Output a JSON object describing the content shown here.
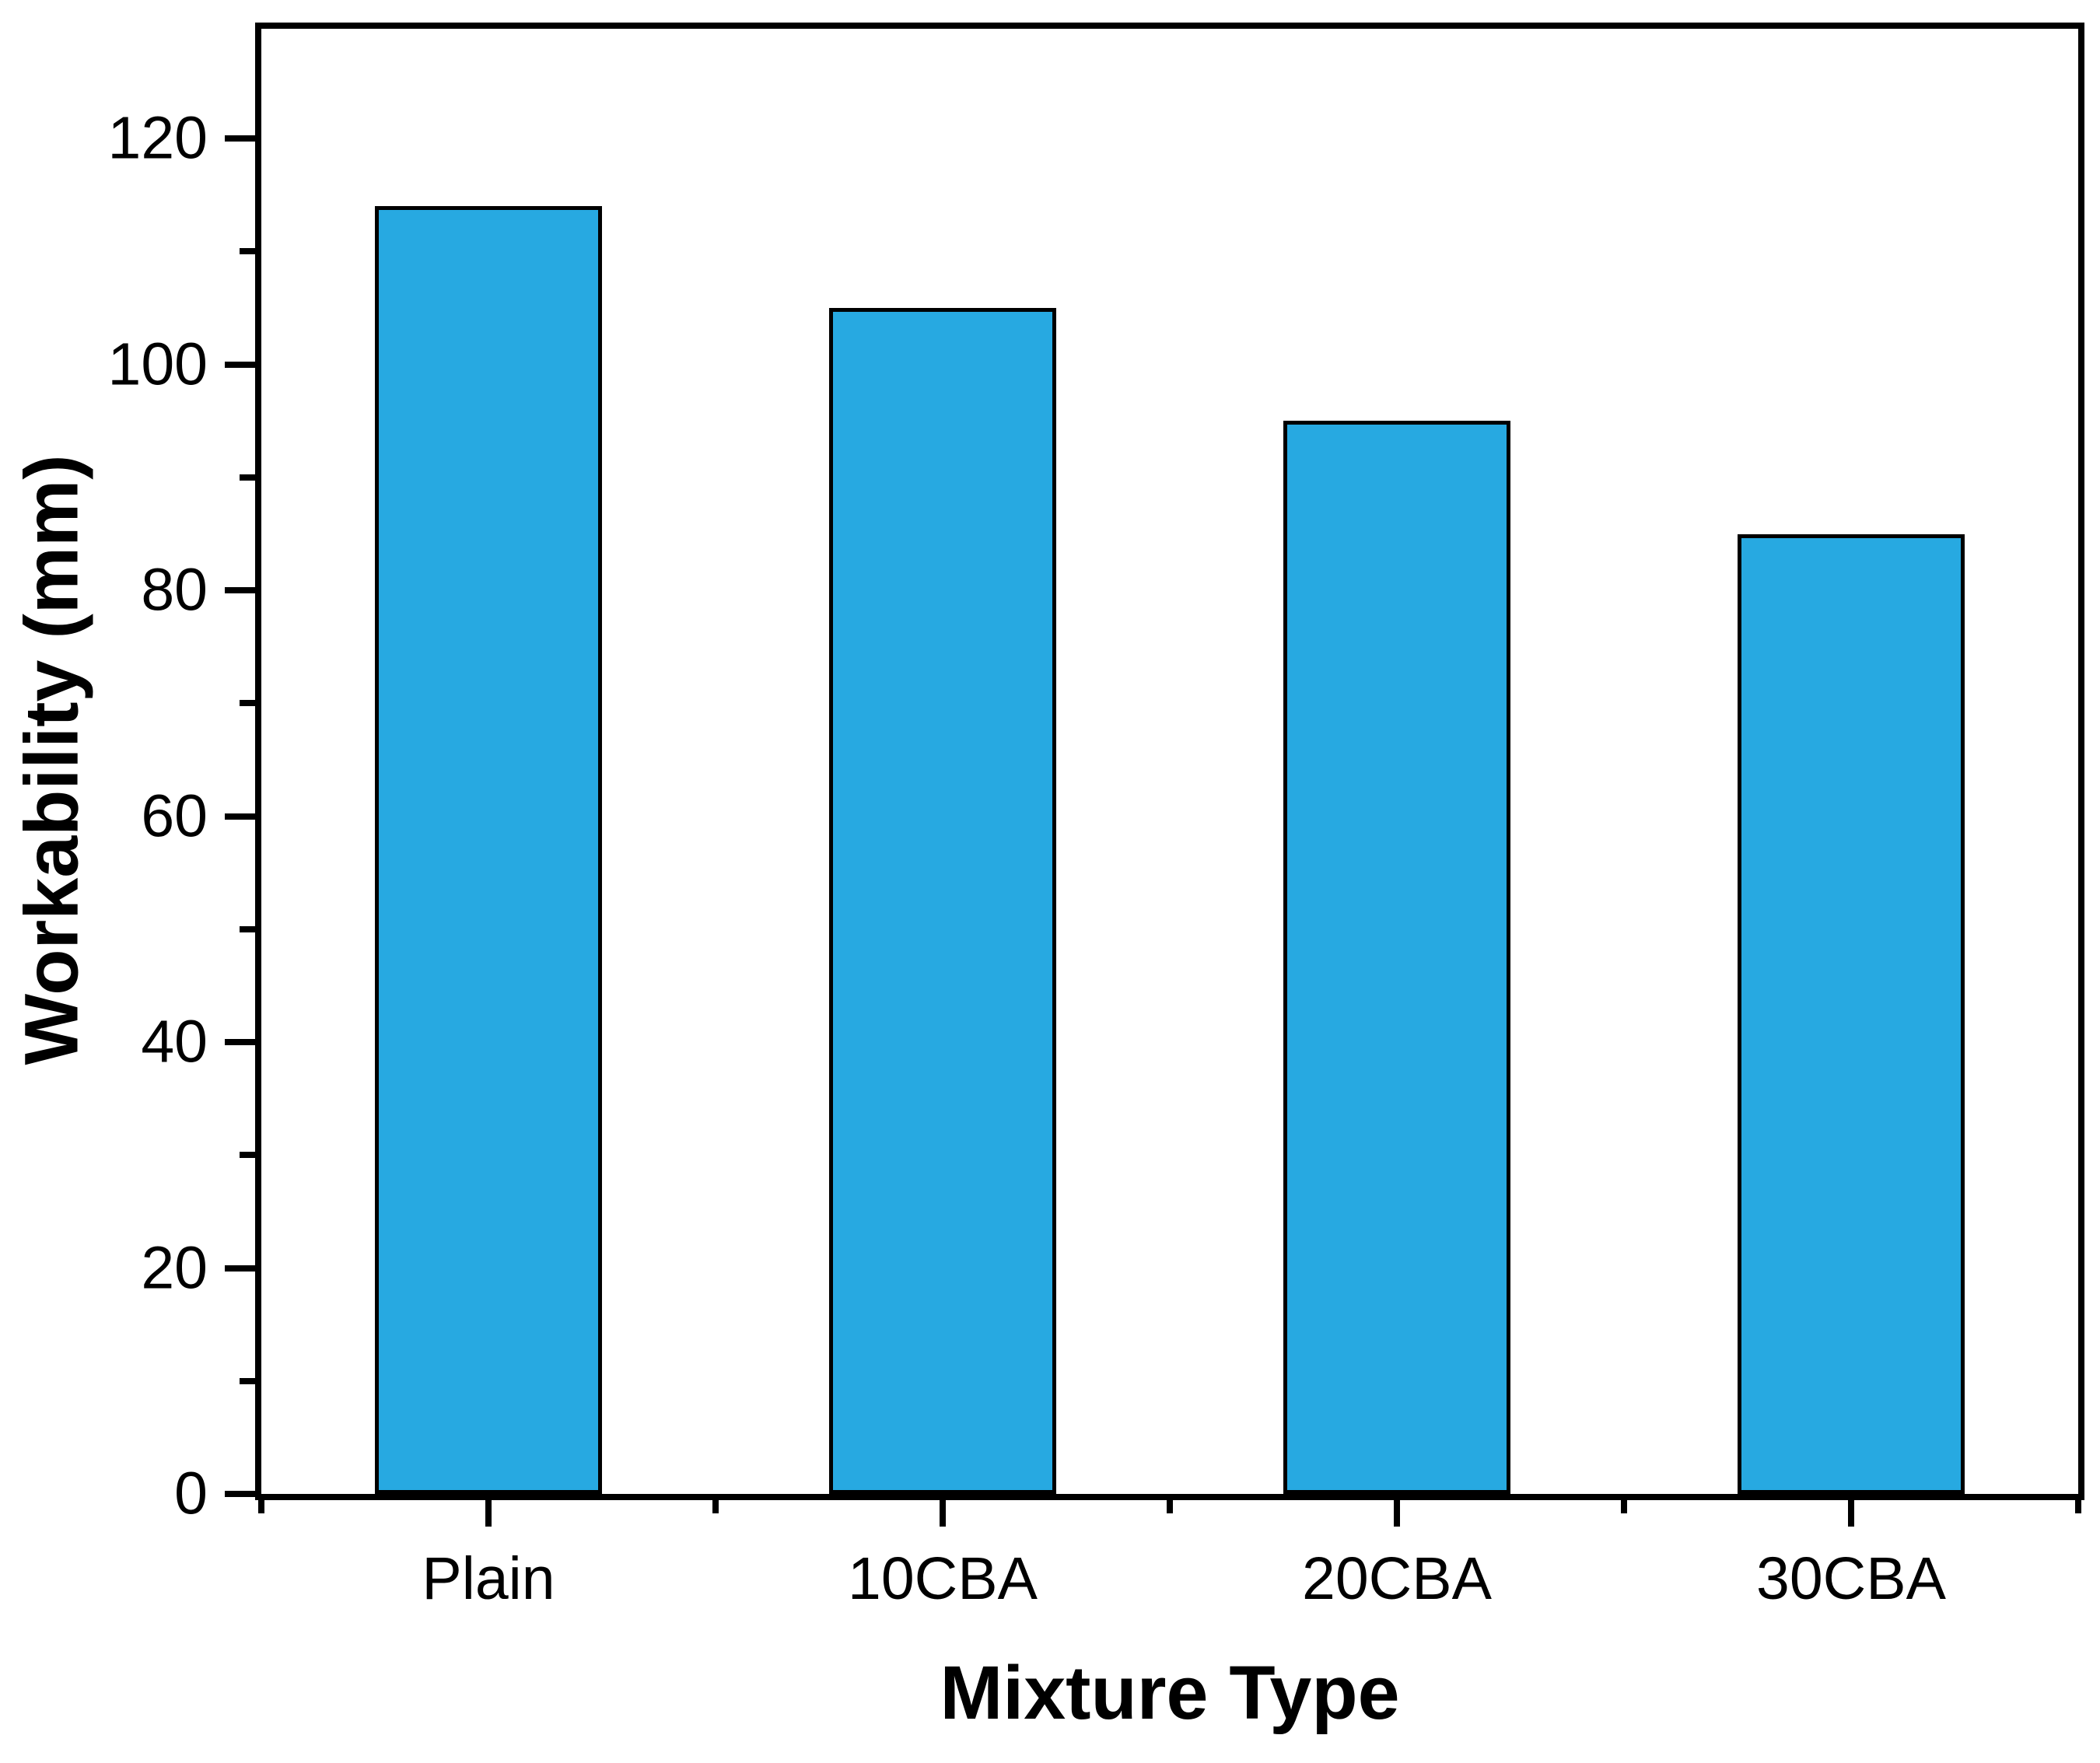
{
  "figure": {
    "description": "Bar chart of concrete workability versus mixture type"
  },
  "chart_data": {
    "type": "bar",
    "title": "",
    "categories": [
      "Plain",
      "10CBA",
      "20CBA",
      "30CBA"
    ],
    "values": [
      114,
      105,
      95,
      85
    ],
    "xlabel": "Mixture Type",
    "ylabel": "Workability (mm)",
    "ylim": [
      0,
      130
    ],
    "yticks_major": [
      0,
      20,
      40,
      60,
      80,
      100,
      120
    ],
    "ytick_labels": [
      "0",
      "20",
      "40",
      "60",
      "80",
      "100",
      "120"
    ],
    "yticks_minor": [
      10,
      30,
      50,
      70,
      90,
      110
    ],
    "grid": false,
    "legend_position": "none",
    "bar_fill_color": "#27A9E1",
    "bar_edge_color": "#000000",
    "axis_color": "#000000",
    "background_color": "#FFFFFF"
  }
}
